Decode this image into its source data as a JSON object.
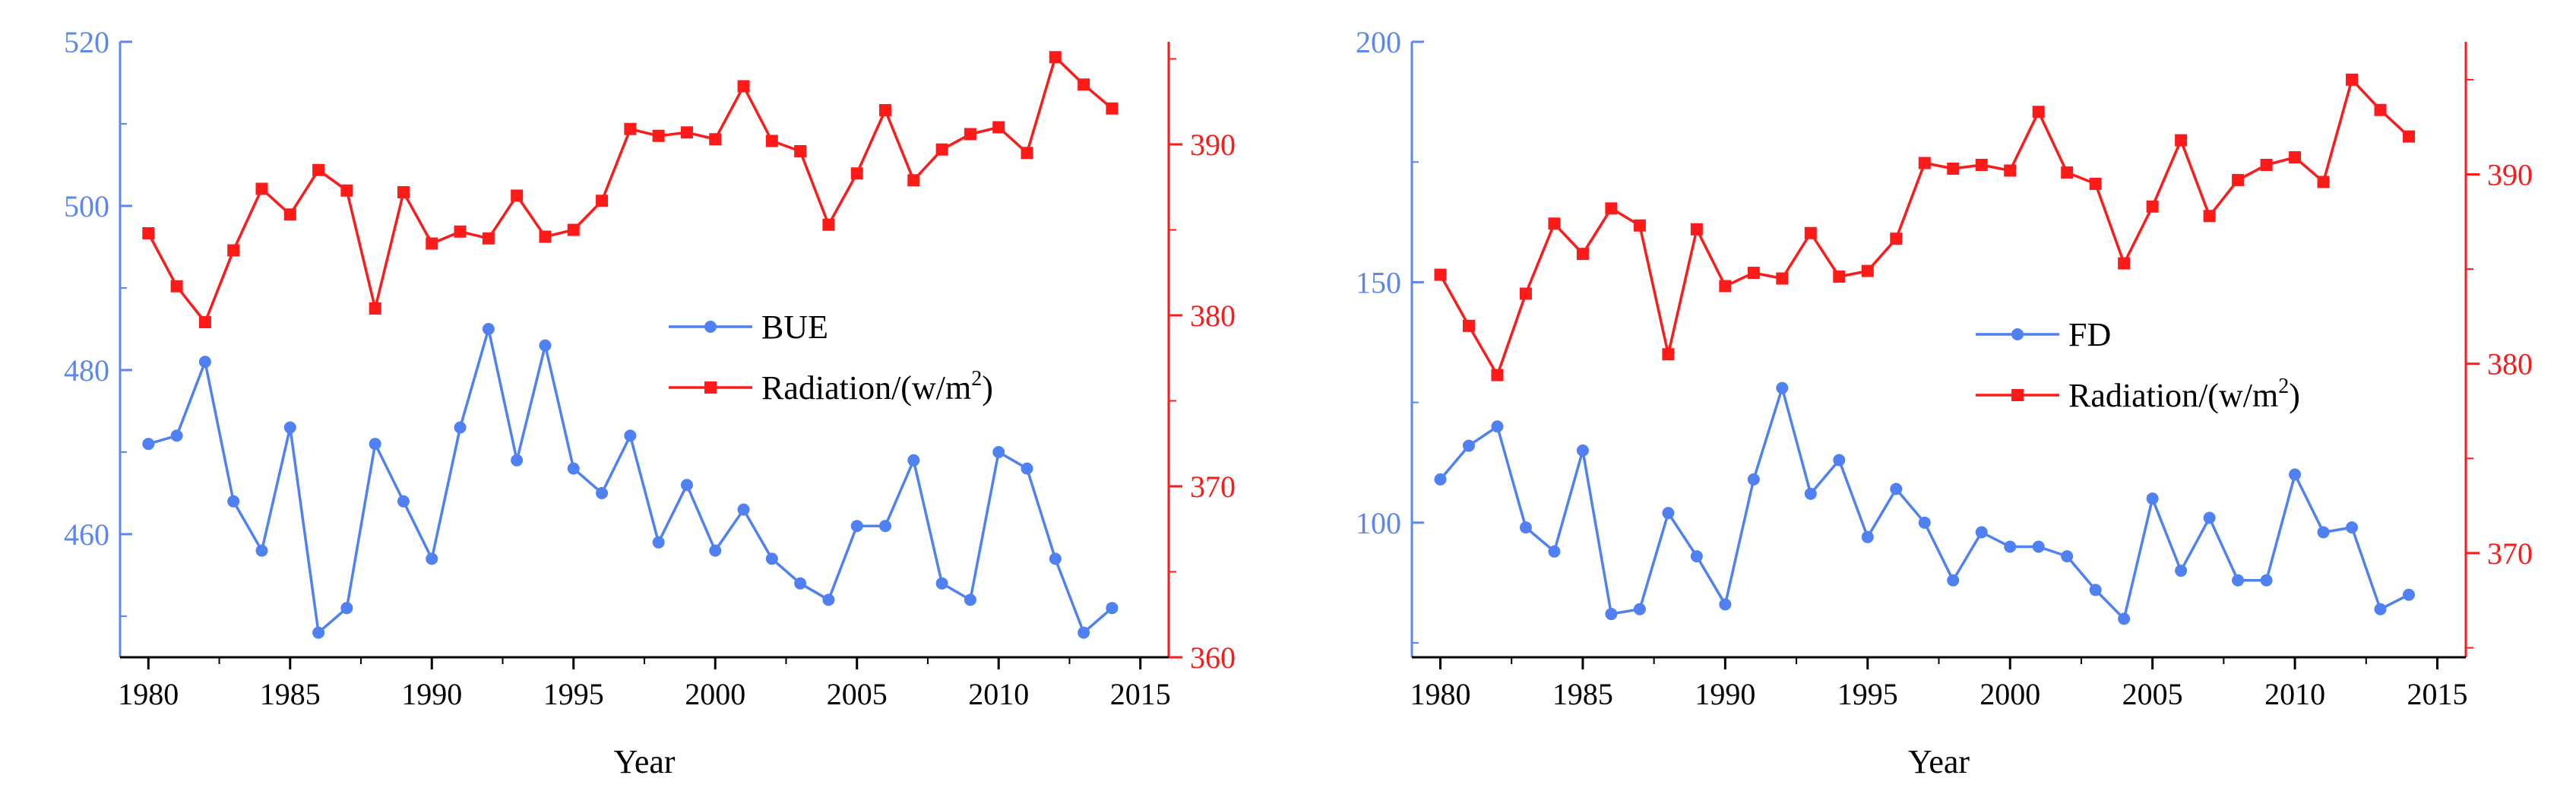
{
  "colors": {
    "left_series": "#4f81f2",
    "right_series": "#ff1a1a",
    "axis": "#000000",
    "left_axis": "#5b87ee",
    "right_axis": "#ff1a1a"
  },
  "chart_data": [
    {
      "type": "line",
      "x": [
        1980,
        1981,
        1982,
        1983,
        1984,
        1985,
        1986,
        1987,
        1988,
        1989,
        1990,
        1991,
        1992,
        1993,
        1994,
        1995,
        1996,
        1997,
        1998,
        1999,
        2000,
        2001,
        2002,
        2003,
        2004,
        2005,
        2006,
        2007,
        2008,
        2009,
        2010,
        2011,
        2012,
        2013,
        2014
      ],
      "xlabel": "Year",
      "xlim": [
        1979,
        2016
      ],
      "xticks": [
        1980,
        1985,
        1990,
        1995,
        2000,
        2005,
        2010,
        2015
      ],
      "xtick_labels": [
        "1980",
        "1985",
        "1990",
        "1995",
        "2000",
        "2005",
        "2010",
        "2015"
      ],
      "left_axis": {
        "ylim": [
          445,
          520
        ],
        "ticks": [
          460,
          480,
          500,
          520
        ],
        "tick_labels": [
          "460",
          "480",
          "500",
          "520"
        ]
      },
      "right_axis": {
        "ylim": [
          360,
          396
        ],
        "ticks": [
          360,
          370,
          380,
          390
        ],
        "tick_labels": [
          "360",
          "370",
          "380",
          "390"
        ]
      },
      "series": [
        {
          "name": "BUE",
          "axis": "left",
          "marker": "circle",
          "values": [
            471,
            472,
            481,
            464,
            458,
            473,
            448,
            451,
            471,
            464,
            457,
            473,
            485,
            469,
            483,
            468,
            465,
            472,
            459,
            466,
            458,
            463,
            457,
            454,
            452,
            461,
            461,
            469,
            454,
            452,
            470,
            468,
            457,
            448,
            451
          ]
        },
        {
          "name": "Radiation",
          "unit": "(w/m",
          "unit_sup": "2",
          "unit_close": ")",
          "axis": "right",
          "marker": "square",
          "values": [
            384.8,
            381.7,
            379.6,
            383.8,
            387.4,
            385.9,
            388.5,
            387.3,
            380.4,
            387.2,
            384.2,
            384.9,
            384.5,
            387.0,
            384.6,
            385.0,
            386.7,
            390.9,
            390.5,
            390.7,
            390.3,
            393.4,
            390.2,
            389.6,
            385.3,
            388.3,
            392.0,
            387.9,
            389.7,
            390.6,
            391.0,
            389.5,
            395.1,
            393.5,
            392.1
          ]
        }
      ],
      "legend": "center-right"
    },
    {
      "type": "line",
      "x": [
        1980,
        1981,
        1982,
        1983,
        1984,
        1985,
        1986,
        1987,
        1988,
        1989,
        1990,
        1991,
        1992,
        1993,
        1994,
        1995,
        1996,
        1997,
        1998,
        1999,
        2000,
        2001,
        2002,
        2003,
        2004,
        2005,
        2006,
        2007,
        2008,
        2009,
        2010,
        2011,
        2012,
        2013,
        2014
      ],
      "xlabel": "Year",
      "xlim": [
        1979,
        2016
      ],
      "xticks": [
        1980,
        1985,
        1990,
        1995,
        2000,
        2005,
        2010,
        2015
      ],
      "xtick_labels": [
        "1980",
        "1985",
        "1990",
        "1995",
        "2000",
        "2005",
        "2010",
        "2015"
      ],
      "left_axis": {
        "ylim": [
          72,
          200
        ],
        "ticks": [
          100,
          150,
          200
        ],
        "tick_labels": [
          "100",
          "150",
          "200"
        ]
      },
      "right_axis": {
        "ylim": [
          364.5,
          397
        ],
        "ticks": [
          370,
          380,
          390
        ],
        "tick_labels": [
          "370",
          "380",
          "390"
        ]
      },
      "series": [
        {
          "name": "FD",
          "axis": "left",
          "marker": "circle",
          "values": [
            109,
            116,
            120,
            99,
            94,
            115,
            81,
            82,
            102,
            93,
            83,
            109,
            128,
            106,
            113,
            97,
            107,
            100,
            88,
            98,
            95,
            95,
            93,
            86,
            80,
            105,
            90,
            101,
            88,
            88,
            110,
            98,
            99,
            82,
            85
          ]
        },
        {
          "name": "Radiation",
          "unit": "(w/m",
          "unit_sup": "2",
          "unit_close": ")",
          "axis": "right",
          "marker": "square",
          "values": [
            384.7,
            382.0,
            379.4,
            383.7,
            387.4,
            385.8,
            388.2,
            387.3,
            380.5,
            387.1,
            384.1,
            384.8,
            384.5,
            386.9,
            384.6,
            384.9,
            386.6,
            390.6,
            390.3,
            390.5,
            390.2,
            393.3,
            390.1,
            389.5,
            385.3,
            388.3,
            391.8,
            387.8,
            389.7,
            390.5,
            390.9,
            389.6,
            395.0,
            393.4,
            392.0
          ]
        }
      ],
      "legend": "center-right"
    }
  ]
}
